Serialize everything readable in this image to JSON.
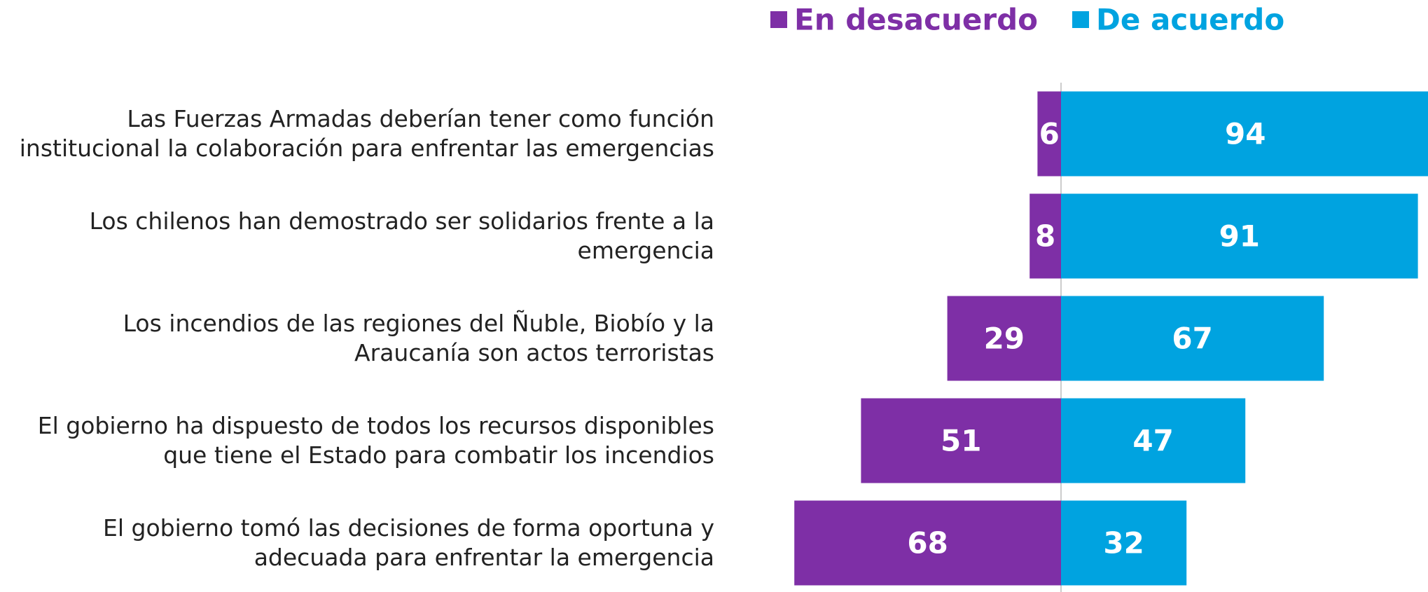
{
  "chart_data": {
    "type": "diverging_bar",
    "categories": [
      "Las Fuerzas Armadas deberían tener como función institucional la colaboración para enfrentar las emergencias",
      "Los chilenos han demostrado ser solidarios frente a la emergencia",
      "Los incendios de las regiones del Ñuble, Biobío y la Araucanía son actos terroristas",
      "El gobierno ha dispuesto de todos los recursos disponibles que tiene el Estado para combatir los incendios",
      "El gobierno tomó las decisiones de forma oportuna y adecuada para enfrentar la emergencia"
    ],
    "series": [
      {
        "name": "En desacuerdo",
        "color": "#7e2fa6",
        "values": [
          6,
          8,
          29,
          51,
          68
        ]
      },
      {
        "name": "De acuerdo",
        "color": "#00a3e0",
        "values": [
          94,
          91,
          67,
          47,
          32
        ]
      }
    ],
    "legend": "top"
  }
}
